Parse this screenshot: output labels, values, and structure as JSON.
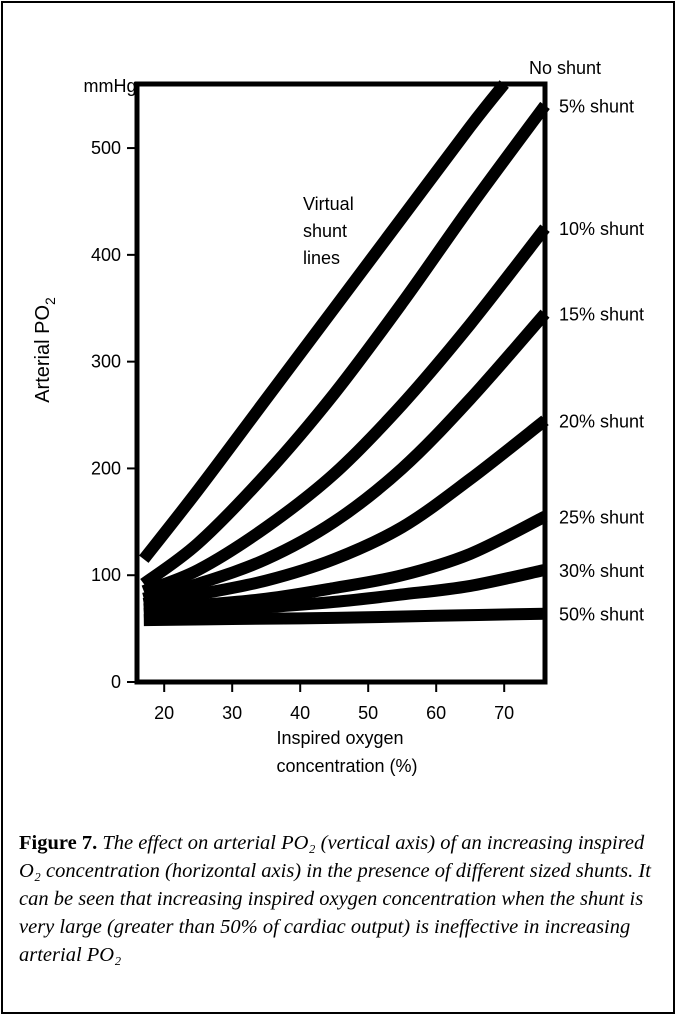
{
  "chart_data": {
    "type": "line",
    "title": "",
    "xlabel": "Inspired oxygen concentration (%)",
    "xlabel_lines": [
      "Inspired oxygen",
      "concentration (%)"
    ],
    "ylabel": "Arterial PO",
    "ylabel_subscript": "2",
    "y_unit": "mmHg",
    "xlim": [
      16,
      76
    ],
    "ylim": [
      0,
      560
    ],
    "x_ticks": [
      20,
      30,
      40,
      50,
      60,
      70
    ],
    "y_ticks": [
      0,
      100,
      200,
      300,
      400,
      500
    ],
    "annotation": [
      "Virtual",
      "shunt",
      "lines"
    ],
    "series": [
      {
        "name": "No shunt",
        "x": [
          17,
          25,
          35,
          45,
          55,
          65,
          70
        ],
        "y": [
          115,
          180,
          265,
          350,
          435,
          520,
          560
        ]
      },
      {
        "name": "5% shunt",
        "x": [
          17,
          25,
          35,
          45,
          55,
          65,
          76
        ],
        "y": [
          92,
          130,
          195,
          270,
          355,
          445,
          540
        ]
      },
      {
        "name": "10% shunt",
        "x": [
          17,
          25,
          35,
          45,
          55,
          65,
          76
        ],
        "y": [
          85,
          105,
          145,
          195,
          260,
          335,
          425
        ]
      },
      {
        "name": "15% shunt",
        "x": [
          17,
          25,
          35,
          45,
          55,
          65,
          76
        ],
        "y": [
          78,
          92,
          115,
          150,
          200,
          265,
          345
        ]
      },
      {
        "name": "20% shunt",
        "x": [
          17,
          25,
          35,
          45,
          55,
          65,
          76
        ],
        "y": [
          73,
          82,
          95,
          115,
          145,
          190,
          245
        ]
      },
      {
        "name": "25% shunt",
        "x": [
          17,
          25,
          35,
          45,
          55,
          65,
          76
        ],
        "y": [
          68,
          72,
          78,
          88,
          100,
          120,
          155
        ]
      },
      {
        "name": "30% shunt",
        "x": [
          17,
          25,
          35,
          45,
          55,
          65,
          76
        ],
        "y": [
          64,
          66,
          70,
          75,
          82,
          90,
          105
        ]
      },
      {
        "name": "50% shunt",
        "x": [
          17,
          30,
          45,
          60,
          76
        ],
        "y": [
          58,
          59,
          60,
          62,
          64
        ]
      }
    ]
  },
  "caption": {
    "figure_label": "Figure 7.",
    "text": "The effect on arterial PO₂ (vertical axis) of an increasing inspired O₂ concentration (horizontal axis) in the presence of different sized shunts. It can be seen that increasing inspired oxygen concentration when the shunt is very large (greater than 50% of cardiac output) is ineffective in increasing arterial PO₂"
  }
}
